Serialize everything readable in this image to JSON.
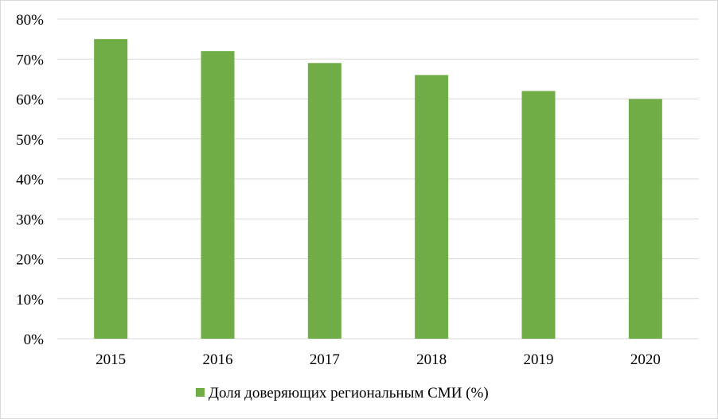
{
  "chart_data": {
    "type": "bar",
    "categories": [
      "2015",
      "2016",
      "2017",
      "2018",
      "2019",
      "2020"
    ],
    "series": [
      {
        "name": "Доля доверяющих региональным СМИ (%)",
        "values": [
          75,
          72,
          69,
          66,
          62,
          60
        ]
      }
    ],
    "ylim": [
      0,
      80
    ],
    "y_ticks": [
      "0%",
      "10%",
      "20%",
      "30%",
      "40%",
      "50%",
      "60%",
      "70%",
      "80%"
    ],
    "y_tick_values": [
      0,
      10,
      20,
      30,
      40,
      50,
      60,
      70,
      80
    ],
    "grid": true,
    "legend_position": "bottom",
    "bar_color": "#70ad47",
    "grid_color": "#d9d9d9"
  }
}
